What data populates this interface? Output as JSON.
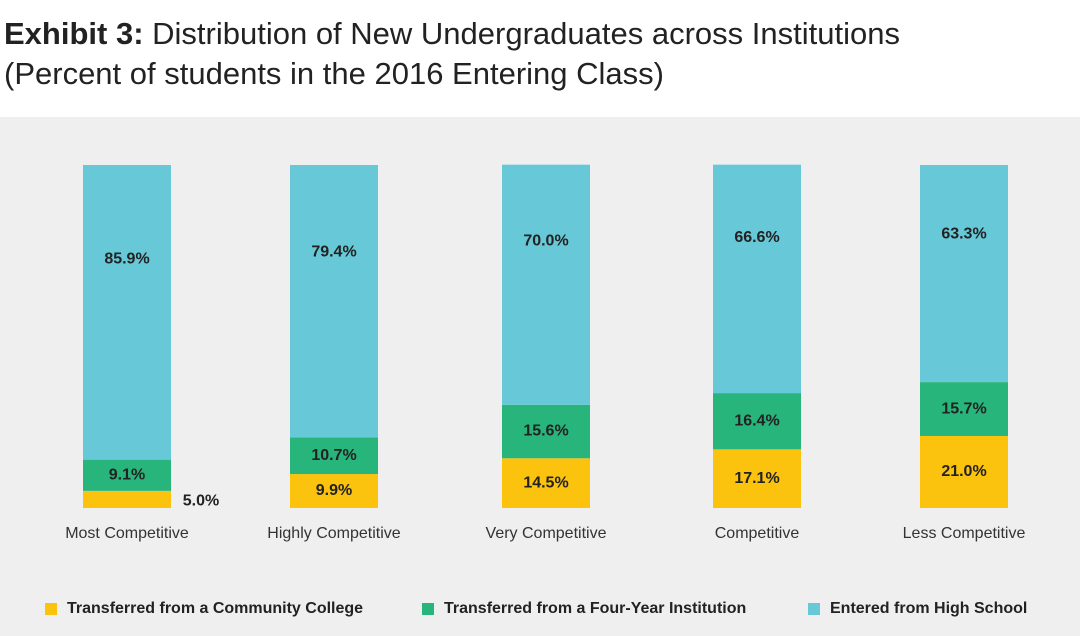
{
  "title": {
    "exhibit": "Exhibit 3:",
    "line1": "Distribution of New Undergraduates across Institutions",
    "line2": "(Percent of students in the 2016 Entering Class)"
  },
  "colors": {
    "community_college": "#fbc30e",
    "four_year": "#27b57b",
    "high_school": "#67c9d8",
    "background": "#f0eff0"
  },
  "chart_data": {
    "type": "bar",
    "stacked": true,
    "categories": [
      "Most Competitive",
      "Highly Competitive",
      "Very Competitive",
      "Competitive",
      "Less Competitive"
    ],
    "series": [
      {
        "name": "Transferred from a Community College",
        "values": [
          5.0,
          9.9,
          14.5,
          17.1,
          21.0
        ],
        "labels": [
          "5.0%",
          "9.9%",
          "14.5%",
          "17.1%",
          "21.0%"
        ]
      },
      {
        "name": "Transferred from a Four-Year Institution",
        "values": [
          9.1,
          10.7,
          15.6,
          16.4,
          15.7
        ],
        "labels": [
          "9.1%",
          "10.7%",
          "15.6%",
          "16.4%",
          "15.7%"
        ]
      },
      {
        "name": "Entered from High School",
        "values": [
          85.9,
          79.4,
          70.0,
          66.6,
          63.3
        ],
        "labels": [
          "85.9%",
          "79.4%",
          "70.0%",
          "66.6%",
          "63.3%"
        ]
      }
    ],
    "ylim": [
      0,
      100
    ],
    "grid": false,
    "legend_position": "bottom"
  }
}
